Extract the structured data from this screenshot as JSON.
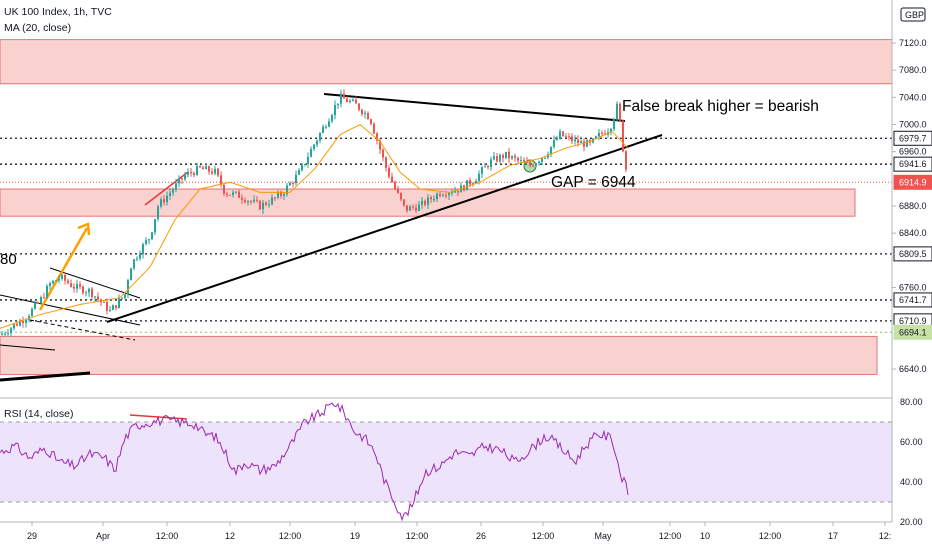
{
  "legend": {
    "symbol": "UK 100 Index, 1h, TVC",
    "indicator": "MA (20, close)",
    "rsi": "RSI (14, close)"
  },
  "currency": "GBP",
  "annotations": {
    "false_break": "False break higher = bearish",
    "gap": "GAP = 6944",
    "left_label": "80"
  },
  "price_axis_ticks": [
    "7120.0",
    "7080.0",
    "7040.0",
    "7000.0",
    "6960.0",
    "6880.0",
    "6840.0",
    "6760.0",
    "6640.0"
  ],
  "price_badges": [
    {
      "label": "6979.7",
      "value": 6979.7,
      "style": "dark"
    },
    {
      "label": "6941.6",
      "value": 6941.6,
      "style": "dark"
    },
    {
      "label": "6914.9",
      "value": 6914.9,
      "style": "red"
    },
    {
      "label": "6809.5",
      "value": 6809.5,
      "style": "dark"
    },
    {
      "label": "6741.7",
      "value": 6741.7,
      "style": "dark"
    },
    {
      "label": "6710.9",
      "value": 6710.9,
      "style": "dark"
    },
    {
      "label": "6694.1",
      "value": 6694.1,
      "style": "green"
    }
  ],
  "rsi_axis_ticks": [
    "80.00",
    "60.00",
    "40.00",
    "20.00"
  ],
  "time_axis_ticks": [
    "29",
    "Apr",
    "12:00",
    "12",
    "12:00",
    "19",
    "12:00",
    "26",
    "12:00",
    "May",
    "12:00",
    "10",
    "12:00",
    "17",
    "12:"
  ],
  "colors": {
    "up": "#26a69a",
    "down": "#ef5350",
    "ma": "#ff9800",
    "zone_fill": "#f7c5c3",
    "zone_stroke": "#e57373",
    "rsi_line": "#9c27b0",
    "rsi_band": "#ede4fb"
  },
  "chart_data": {
    "type": "candlestick",
    "title": "UK 100 Index, 1h, TVC",
    "ylim": [
      6600,
      7160
    ],
    "resistance_zones": [
      [
        7060,
        7125
      ],
      [
        6865,
        6905
      ],
      [
        6632,
        6688
      ]
    ],
    "horizontal_levels": [
      6979.7,
      6941.6,
      6809.5,
      6741.7,
      6710.9,
      6694.1
    ],
    "current_price": 6914.9,
    "close_path": [
      [
        0,
        6690
      ],
      [
        25,
        6715
      ],
      [
        40,
        6740
      ],
      [
        50,
        6765
      ],
      [
        60,
        6775
      ],
      [
        75,
        6760
      ],
      [
        90,
        6755
      ],
      [
        100,
        6740
      ],
      [
        110,
        6725
      ],
      [
        125,
        6750
      ],
      [
        130,
        6790
      ],
      [
        140,
        6815
      ],
      [
        150,
        6835
      ],
      [
        158,
        6880
      ],
      [
        170,
        6900
      ],
      [
        185,
        6925
      ],
      [
        200,
        6935
      ],
      [
        215,
        6930
      ],
      [
        225,
        6900
      ],
      [
        240,
        6895
      ],
      [
        260,
        6880
      ],
      [
        280,
        6895
      ],
      [
        300,
        6930
      ],
      [
        310,
        6960
      ],
      [
        325,
        7000
      ],
      [
        340,
        7040
      ],
      [
        355,
        7030
      ],
      [
        370,
        7010
      ],
      [
        385,
        6940
      ],
      [
        395,
        6905
      ],
      [
        405,
        6875
      ],
      [
        420,
        6880
      ],
      [
        440,
        6900
      ],
      [
        460,
        6905
      ],
      [
        475,
        6920
      ],
      [
        490,
        6945
      ],
      [
        505,
        6955
      ],
      [
        520,
        6945
      ],
      [
        530,
        6940
      ],
      [
        545,
        6955
      ],
      [
        560,
        6985
      ],
      [
        575,
        6975
      ],
      [
        590,
        6970
      ],
      [
        600,
        6985
      ],
      [
        610,
        6995
      ],
      [
        618,
        7030
      ],
      [
        622,
        6975
      ],
      [
        628,
        6915
      ]
    ],
    "ma_path": [
      [
        0,
        6700
      ],
      [
        40,
        6720
      ],
      [
        80,
        6735
      ],
      [
        120,
        6745
      ],
      [
        150,
        6790
      ],
      [
        175,
        6860
      ],
      [
        200,
        6905
      ],
      [
        230,
        6915
      ],
      [
        260,
        6900
      ],
      [
        290,
        6900
      ],
      [
        315,
        6935
      ],
      [
        340,
        6985
      ],
      [
        360,
        7000
      ],
      [
        380,
        6975
      ],
      [
        400,
        6930
      ],
      [
        420,
        6905
      ],
      [
        450,
        6900
      ],
      [
        480,
        6915
      ],
      [
        510,
        6940
      ],
      [
        540,
        6950
      ],
      [
        565,
        6965
      ],
      [
        590,
        6975
      ],
      [
        612,
        6990
      ],
      [
        628,
        6965
      ]
    ],
    "rsi": {
      "ylim": [
        20,
        82
      ],
      "band": [
        30,
        70
      ],
      "path": [
        [
          0,
          55
        ],
        [
          15,
          58
        ],
        [
          30,
          52
        ],
        [
          45,
          57
        ],
        [
          60,
          50
        ],
        [
          75,
          48
        ],
        [
          90,
          54
        ],
        [
          105,
          52
        ],
        [
          115,
          46
        ],
        [
          125,
          62
        ],
        [
          135,
          68
        ],
        [
          150,
          70
        ],
        [
          165,
          71
        ],
        [
          180,
          70
        ],
        [
          195,
          69
        ],
        [
          205,
          64
        ],
        [
          215,
          63
        ],
        [
          225,
          55
        ],
        [
          235,
          45
        ],
        [
          245,
          50
        ],
        [
          260,
          46
        ],
        [
          275,
          48
        ],
        [
          290,
          58
        ],
        [
          305,
          70
        ],
        [
          320,
          74
        ],
        [
          335,
          80
        ],
        [
          345,
          74
        ],
        [
          355,
          65
        ],
        [
          365,
          62
        ],
        [
          375,
          55
        ],
        [
          385,
          40
        ],
        [
          395,
          30
        ],
        [
          403,
          22
        ],
        [
          412,
          28
        ],
        [
          425,
          45
        ],
        [
          440,
          48
        ],
        [
          455,
          55
        ],
        [
          470,
          53
        ],
        [
          485,
          58
        ],
        [
          500,
          56
        ],
        [
          515,
          50
        ],
        [
          530,
          56
        ],
        [
          545,
          63
        ],
        [
          555,
          60
        ],
        [
          565,
          55
        ],
        [
          575,
          50
        ],
        [
          585,
          58
        ],
        [
          598,
          64
        ],
        [
          612,
          62
        ],
        [
          620,
          45
        ],
        [
          628,
          35
        ]
      ]
    }
  }
}
